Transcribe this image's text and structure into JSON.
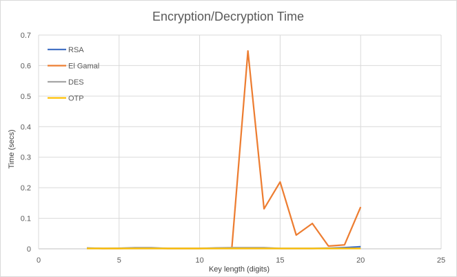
{
  "chart_data": {
    "type": "line",
    "title": "Encryption/Decryption Time",
    "xlabel": "Key length (digits)",
    "ylabel": "Time (secs)",
    "xlim": [
      0,
      25
    ],
    "ylim": [
      0,
      0.7
    ],
    "xticks": [
      0,
      5,
      10,
      15,
      20,
      25
    ],
    "yticks": [
      0,
      0.1,
      0.2,
      0.3,
      0.4,
      0.5,
      0.6,
      0.7
    ],
    "grid": true,
    "legend_position": "top-left",
    "x": [
      3,
      4,
      5,
      6,
      7,
      8,
      9,
      10,
      11,
      12,
      13,
      14,
      15,
      16,
      17,
      18,
      19,
      20
    ],
    "series": [
      {
        "name": "RSA",
        "color": "#4472C4",
        "values": [
          0.001,
          0.001,
          0.001,
          0.001,
          0.001,
          0.001,
          0.001,
          0.001,
          0.001,
          0.001,
          0.001,
          0.001,
          0.001,
          0.001,
          0.001,
          0.002,
          0.004,
          0.007
        ]
      },
      {
        "name": "El Gamal",
        "color": "#ED7D31",
        "values": [
          0.002,
          0.001,
          0.001,
          0.002,
          0.002,
          0.001,
          0.001,
          0.001,
          0.002,
          0.002,
          0.648,
          0.131,
          0.219,
          0.045,
          0.083,
          0.009,
          0.013,
          0.137
        ]
      },
      {
        "name": "DES",
        "color": "#A5A5A5",
        "values": [
          0.003,
          0.001,
          0.002,
          0.004,
          0.004,
          0.001,
          0.001,
          0.001,
          0.003,
          0.004,
          0.004,
          0.004,
          0.001,
          0.001,
          0.001,
          0.001,
          0.001,
          0.001
        ]
      },
      {
        "name": "OTP",
        "color": "#FFC000",
        "values": [
          0.001,
          0.001,
          0.001,
          0.001,
          0.001,
          0.001,
          0.001,
          0.001,
          0.001,
          0.001,
          0.001,
          0.001,
          0.001,
          0.001,
          0.001,
          0.001,
          0.001,
          0.001
        ]
      }
    ]
  }
}
